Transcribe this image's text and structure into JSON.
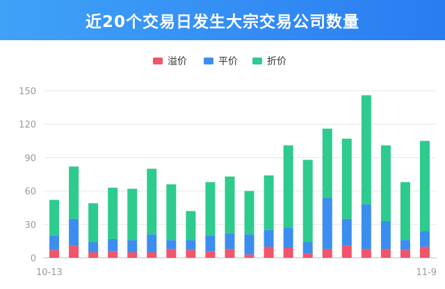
{
  "header": {
    "title": "近20个交易日发生大宗交易公司数量"
  },
  "chart_data": {
    "type": "bar",
    "stacked": true,
    "categories": [
      "10-13",
      "",
      "",
      "",
      "",
      "",
      "",
      "",
      "",
      "",
      "",
      "",
      "",
      "",
      "",
      "",
      "",
      "",
      "",
      "11-9"
    ],
    "ylim": [
      0,
      150
    ],
    "yticks": [
      0,
      30,
      60,
      90,
      120,
      150
    ],
    "grid": true,
    "legend": "top-center",
    "series": [
      {
        "name": "溢价",
        "color": "#f0556b",
        "values": [
          7,
          11,
          5,
          6,
          5,
          5,
          8,
          7,
          6,
          8,
          3,
          10,
          9,
          4,
          8,
          11,
          8,
          8,
          7,
          10
        ]
      },
      {
        "name": "平价",
        "color": "#3b8ef0",
        "values": [
          13,
          24,
          9,
          11,
          11,
          16,
          8,
          9,
          14,
          14,
          18,
          15,
          18,
          10,
          46,
          24,
          40,
          25,
          9,
          14
        ]
      },
      {
        "name": "折价",
        "color": "#2ecb8f",
        "values": [
          32,
          47,
          35,
          46,
          46,
          59,
          50,
          26,
          48,
          51,
          39,
          49,
          74,
          74,
          62,
          72,
          98,
          68,
          52,
          81
        ]
      }
    ]
  }
}
